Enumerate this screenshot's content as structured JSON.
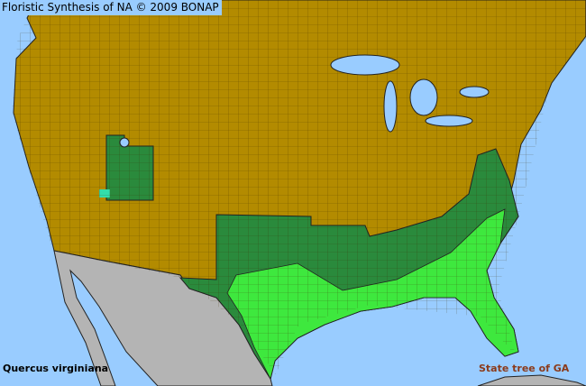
{
  "map": {
    "title": "Floristic Synthesis of NA © 2009 BONAP",
    "species": "Quercus virginiana",
    "note": "State tree of GA",
    "region": "North America (USA, southern Canada, northern Mexico)",
    "colors": {
      "ocean": "#99ccff",
      "absent": "#b38b00",
      "outside_range": "#b4b4b4",
      "present_state": "#2a8a3c",
      "present_county": "#3ee83e",
      "noted": "#33ddaa",
      "note_text": "#8b3a1a"
    }
  }
}
